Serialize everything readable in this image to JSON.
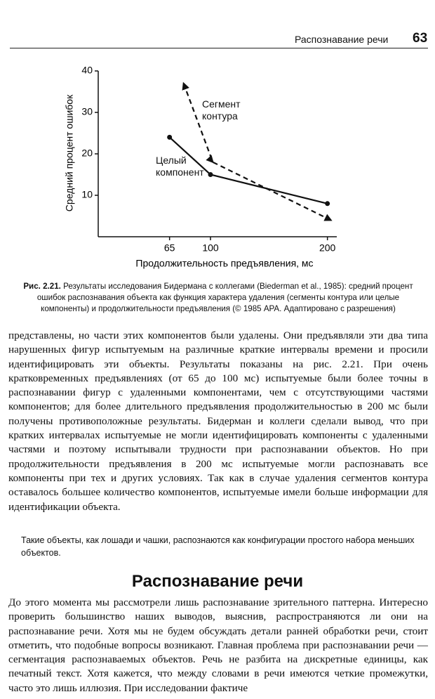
{
  "header": {
    "title": "Распознавание речи",
    "page": "63"
  },
  "chart_data": {
    "type": "line",
    "x_label": "Продолжительность предъявления, мс",
    "y_label": "Средний процент ошибок",
    "series": [
      {
        "name": "Целый компонент",
        "color": "#111",
        "style": "solid",
        "x": [
          65,
          100,
          200
        ],
        "values": [
          24,
          15,
          8
        ]
      },
      {
        "name": "Сегмент контура",
        "color": "#111",
        "style": "dashed",
        "x": [
          77,
          102,
          203
        ],
        "values": [
          37,
          18,
          4
        ]
      }
    ],
    "xlim": [
      4,
      208
    ],
    "ylim": [
      0,
      40
    ],
    "xticks": [
      65,
      100,
      200
    ],
    "yticks": [
      10,
      20,
      30,
      40
    ]
  },
  "caption": {
    "label": "Рис. 2.21.",
    "text": "Результаты исследования Бидермана с коллегами (Biederman et al., 1985): средний процент ошибок распознавания объекта как функция характера удаления (сегменты контура или целые компоненты) и продолжительности предъявления (© 1985 APA. Адаптировано с разрешения)"
  },
  "paragraphs": [
    "представлены, но части этих компонентов были удалены. Они предъявляли эти два типа нарушенных фигур испытуемым на различные краткие интервалы времени и просили идентифицировать эти объекты. Результаты показаны на рис. 2.21. При очень кратковременных предъявлениях (от 65 до 100 мс) испытуемые были более точны в распознавании фигур с удаленными компонентами, чем с отсутствующими частями компонентов; для более длительного предъявления продолжительностью в 200 мс были получены противоположные результаты. Бидерман и коллеги сделали вывод, что при кратких интервалах испытуемые не могли идентифицировать компоненты с удаленными частями и поэтому испытывали трудности при распознавании объектов. Но при продолжительности предъявления в 200 мс испытуемые могли распознавать все компоненты при тех и других условиях. Так как в случае удаления сегментов контура оставалось большее количество компонентов, испытуемые имели больше информации для идентификации объекта."
  ],
  "note": "Такие объекты, как лошади и чашки, распознаются как конфигурации простого набора меньших объектов.",
  "section": {
    "title": "Распознавание речи",
    "text": "До этого момента мы рассмотрели лишь распознавание зрительного паттерна. Интересно проверить большинство наших выводов, выяснив, распространяются ли они на распознавание речи. Хотя мы не будем обсуждать детали ранней обработки речи, стоит отметить, что подобные вопросы возникают. Главная проблема при распознавании речи — сегментация распознаваемых объектов. Речь не разбита на дискретные единицы, как печатный текст. Хотя кажется, что между словами в речи имеются четкие промежутки, часто это лишь иллюзия. При исследовании фактиче"
  }
}
